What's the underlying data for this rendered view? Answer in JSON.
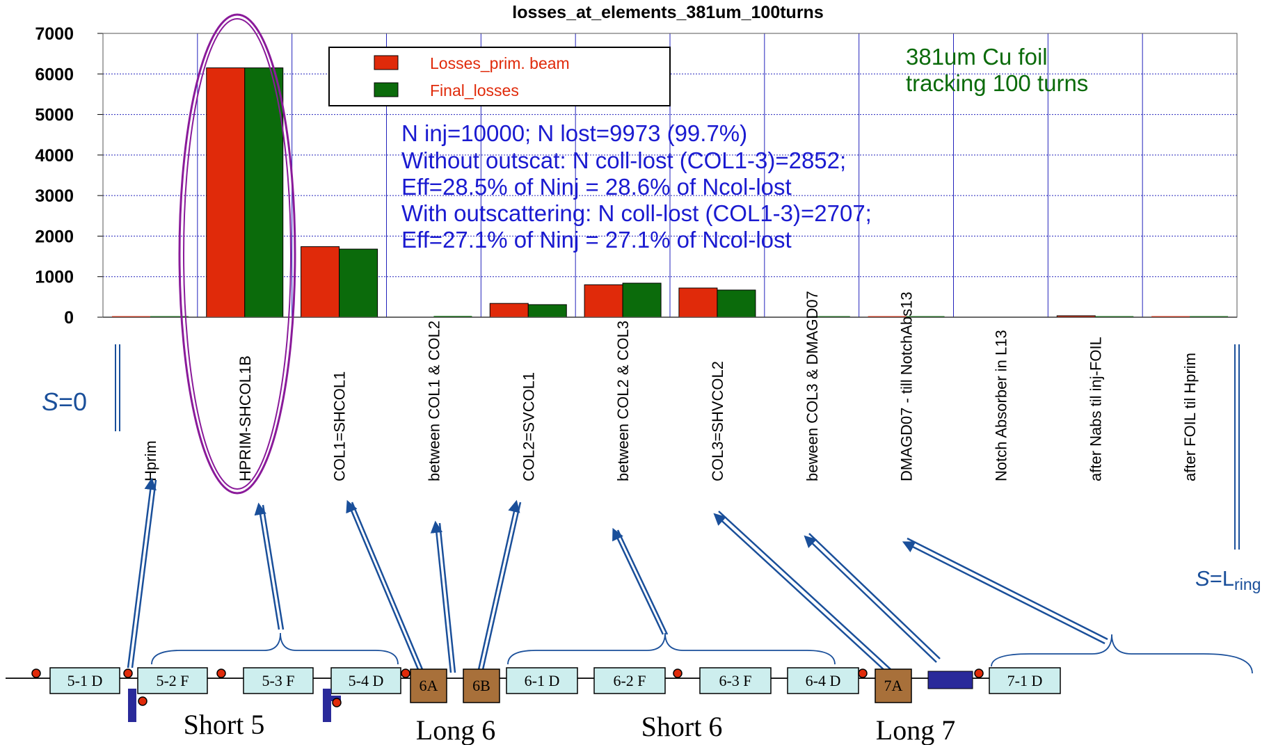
{
  "chart_data": {
    "type": "bar",
    "title": "losses_at_elements_381um_100turns",
    "xlabel": "",
    "ylabel": "",
    "ylim": [
      0,
      7000
    ],
    "yticks": [
      0,
      1000,
      2000,
      3000,
      4000,
      5000,
      6000,
      7000
    ],
    "grid": true,
    "legend_position": "top-center",
    "categories": [
      "Hprim",
      "HPRIM-SHCOL1B",
      "COL1=SHCOL1",
      "between COL1 & COL2",
      "COL2=SVCOL1",
      "between COL2 & COL3",
      "COL3=SHVCOL2",
      "beween COL3 & DMAGD07",
      "DMAGD07 - till NotchAbs13",
      "Notch Absorber in L13",
      "after Nabs til inj-FOIL",
      "after FOIL til Hprim"
    ],
    "series": [
      {
        "name": "Losses_prim. beam",
        "color": "#e02a0a",
        "values": [
          15,
          6150,
          1740,
          0,
          340,
          800,
          720,
          0,
          15,
          0,
          35,
          15
        ]
      },
      {
        "name": "Final_losses",
        "color": "#0b6b0b",
        "values": [
          10,
          6150,
          1680,
          30,
          310,
          840,
          670,
          25,
          12,
          0,
          25,
          10
        ]
      }
    ],
    "annotations": {
      "foil_line1": "381um Cu foil",
      "foil_line2": "tracking 100 turns",
      "stats": [
        "N inj=10000; N lost=9973 (99.7%)",
        "Without outscat: N coll-lost (COL1-3)=2852;",
        "Eff=28.5% of Ninj = 28.6% of Ncol-lost",
        "With outscattering: N coll-lost (COL1-3)=2707;",
        "Eff=27.1% of Ninj = 27.1% of Ncol-lost"
      ]
    }
  },
  "ring": {
    "s_start_italic": "S",
    "s_start_rest": "=0",
    "s_end_italic": "S",
    "s_end_rest": "=L",
    "s_end_sub": "ring",
    "elements": [
      "5-1 D",
      "5-2 F",
      "5-3 F",
      "5-4 D",
      "6A",
      "6B",
      "6-1 D",
      "6-2 F",
      "6-3 F",
      "6-4 D",
      "7A",
      "7-1 D"
    ],
    "section_labels": [
      "Short 5",
      "Long 6",
      "Short 6",
      "Long 7"
    ]
  },
  "colors": {
    "axis_text": "#000000",
    "grid": "#2222bb",
    "annotation_green": "#0b6b0b",
    "annotation_blue": "#1a1ad0",
    "legend_text": "#e02a0a",
    "ellipse": "#8a1a9a",
    "arrow": "#1a4f9a",
    "s_label": "#1a4f9a",
    "quad_fill": "#cdeeee",
    "collimator_fill": "#a8703a",
    "absorber_fill": "#2a2a9a",
    "bpm": "#e02a0a"
  }
}
